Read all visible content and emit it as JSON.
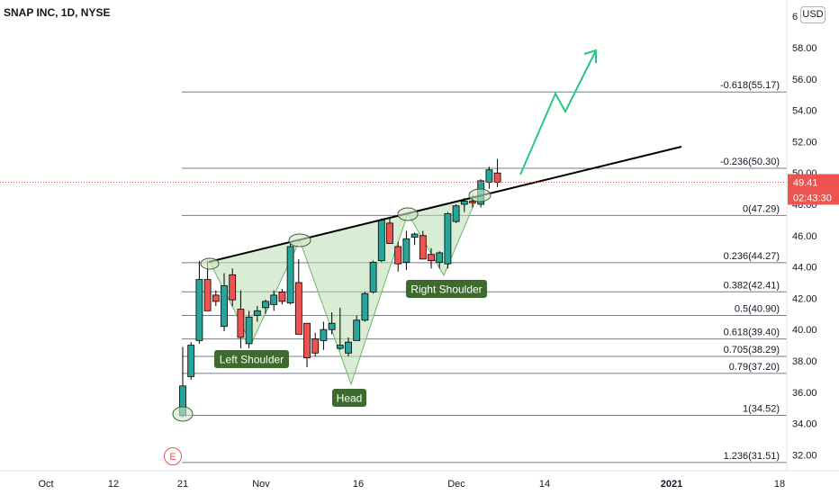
{
  "header": {
    "title": "SNAP INC, 1D, NYSE"
  },
  "currency": "USD",
  "price_badge": {
    "value": "49.41",
    "countdown": "02:43:30",
    "color": "#ef5350"
  },
  "earnings_marker": "E",
  "colors": {
    "up": "#26a69a",
    "down": "#ef5350",
    "pattern_fill": "#b9dfb0",
    "pattern_stroke": "#6fb36a",
    "label_bg": "#3d6b2d",
    "projection": "#26c97f",
    "neckline": "#000000"
  },
  "chart_data": {
    "type": "candlestick",
    "title": "SNAP INC, 1D, NYSE",
    "xlabel": "",
    "ylabel": "",
    "ylim": [
      31,
      60.5
    ],
    "y_ticks": [
      "32.00",
      "34.00",
      "36.00",
      "38.00",
      "40.00",
      "42.00",
      "44.00",
      "46.00",
      "48.00",
      "50.00",
      "52.00",
      "54.00",
      "56.00",
      "58.00"
    ],
    "y_tick_top_partial": "6",
    "x_ticks": [
      "Oct",
      "12",
      "21",
      "Nov",
      "16",
      "Dec",
      "14",
      "2021",
      "18"
    ],
    "candles": [
      {
        "date": "2020-10-20",
        "o": 34.5,
        "h": 38.9,
        "l": 34.4,
        "c": 36.4
      },
      {
        "date": "2020-10-21",
        "o": 37.0,
        "h": 39.2,
        "l": 36.8,
        "c": 39.0
      },
      {
        "date": "2020-10-22",
        "o": 39.3,
        "h": 44.4,
        "l": 39.1,
        "c": 43.2
      },
      {
        "date": "2020-10-23",
        "o": 43.2,
        "h": 44.4,
        "l": 41.2,
        "c": 41.2
      },
      {
        "date": "2020-10-26",
        "o": 42.2,
        "h": 42.5,
        "l": 41.5,
        "c": 41.8
      },
      {
        "date": "2020-10-27",
        "o": 40.2,
        "h": 43.6,
        "l": 39.9,
        "c": 42.8
      },
      {
        "date": "2020-10-28",
        "o": 43.5,
        "h": 43.9,
        "l": 41.5,
        "c": 41.9
      },
      {
        "date": "2020-10-29",
        "o": 41.3,
        "h": 42.5,
        "l": 38.8,
        "c": 39.5
      },
      {
        "date": "2020-10-30",
        "o": 39.1,
        "h": 41.2,
        "l": 38.8,
        "c": 40.8
      },
      {
        "date": "2020-11-02",
        "o": 40.9,
        "h": 41.5,
        "l": 40.5,
        "c": 41.2
      },
      {
        "date": "2020-11-03",
        "o": 41.4,
        "h": 41.9,
        "l": 41.0,
        "c": 41.8
      },
      {
        "date": "2020-11-04",
        "o": 41.6,
        "h": 42.5,
        "l": 41.2,
        "c": 42.2
      },
      {
        "date": "2020-11-05",
        "o": 42.4,
        "h": 42.6,
        "l": 41.6,
        "c": 41.8
      },
      {
        "date": "2020-11-06",
        "o": 41.7,
        "h": 45.6,
        "l": 41.6,
        "c": 45.3
      },
      {
        "date": "2020-11-09",
        "o": 43.0,
        "h": 44.5,
        "l": 39.7,
        "c": 39.7
      },
      {
        "date": "2020-11-10",
        "o": 40.4,
        "h": 40.4,
        "l": 37.6,
        "c": 38.2
      },
      {
        "date": "2020-11-11",
        "o": 39.4,
        "h": 39.8,
        "l": 38.3,
        "c": 38.5
      },
      {
        "date": "2020-11-12",
        "o": 39.3,
        "h": 40.5,
        "l": 38.7,
        "c": 40.0
      },
      {
        "date": "2020-11-13",
        "o": 40.0,
        "h": 41.1,
        "l": 39.7,
        "c": 40.4
      },
      {
        "date": "2020-11-16",
        "o": 38.8,
        "h": 41.4,
        "l": 38.7,
        "c": 39.0
      },
      {
        "date": "2020-11-17",
        "o": 38.5,
        "h": 39.5,
        "l": 38.3,
        "c": 39.2
      },
      {
        "date": "2020-11-18",
        "o": 39.3,
        "h": 40.9,
        "l": 39.3,
        "c": 40.6
      },
      {
        "date": "2020-11-19",
        "o": 40.6,
        "h": 42.4,
        "l": 40.5,
        "c": 42.3
      },
      {
        "date": "2020-11-20",
        "o": 42.4,
        "h": 44.4,
        "l": 42.3,
        "c": 44.3
      },
      {
        "date": "2020-11-23",
        "o": 44.4,
        "h": 47.1,
        "l": 44.3,
        "c": 47.0
      },
      {
        "date": "2020-11-24",
        "o": 46.8,
        "h": 47.2,
        "l": 45.5,
        "c": 45.5
      },
      {
        "date": "2020-11-25",
        "o": 45.3,
        "h": 45.6,
        "l": 43.7,
        "c": 44.2
      },
      {
        "date": "2020-11-27",
        "o": 44.3,
        "h": 46.3,
        "l": 43.8,
        "c": 45.8
      },
      {
        "date": "2020-11-30",
        "o": 45.9,
        "h": 46.2,
        "l": 45.4,
        "c": 46.1
      },
      {
        "date": "2020-12-01",
        "o": 46.0,
        "h": 46.3,
        "l": 44.5,
        "c": 44.5
      },
      {
        "date": "2020-12-02",
        "o": 44.8,
        "h": 45.2,
        "l": 43.9,
        "c": 44.4
      },
      {
        "date": "2020-12-03",
        "o": 44.3,
        "h": 45.0,
        "l": 43.9,
        "c": 44.9
      },
      {
        "date": "2020-12-04",
        "o": 44.2,
        "h": 47.5,
        "l": 43.9,
        "c": 47.4
      },
      {
        "date": "2020-12-07",
        "o": 46.9,
        "h": 48.0,
        "l": 46.8,
        "c": 47.9
      },
      {
        "date": "2020-12-08",
        "o": 48.0,
        "h": 48.4,
        "l": 47.5,
        "c": 48.2
      },
      {
        "date": "2020-12-09",
        "o": 48.2,
        "h": 48.6,
        "l": 47.8,
        "c": 48.1
      },
      {
        "date": "2020-12-10",
        "o": 48.0,
        "h": 49.6,
        "l": 47.8,
        "c": 49.5
      },
      {
        "date": "2020-12-11",
        "o": 49.4,
        "h": 50.4,
        "l": 49.0,
        "c": 50.2
      },
      {
        "date": "2020-12-14",
        "o": 50.0,
        "h": 50.9,
        "l": 49.1,
        "c": 49.4
      }
    ],
    "fib_levels": [
      {
        "label": "-0.618(55.17)",
        "value": 55.17
      },
      {
        "label": "-0.236(50.30)",
        "value": 50.3
      },
      {
        "label": "0(47.29)",
        "value": 47.29
      },
      {
        "label": "0.236(44.27)",
        "value": 44.27
      },
      {
        "label": "0.382(42.41)",
        "value": 42.41
      },
      {
        "label": "0.5(40.90)",
        "value": 40.9
      },
      {
        "label": "0.618(39.40)",
        "value": 39.4
      },
      {
        "label": "0.705(38.29)",
        "value": 38.29
      },
      {
        "label": "0.79(37.20)",
        "value": 37.2
      },
      {
        "label": "1(34.52)",
        "value": 34.52
      },
      {
        "label": "1.236(31.51)",
        "value": 31.51
      }
    ],
    "pattern_labels": [
      {
        "label": "Left Shoulder"
      },
      {
        "label": "Head"
      },
      {
        "label": "Right Shoulder"
      }
    ],
    "current_price": 49.41
  }
}
